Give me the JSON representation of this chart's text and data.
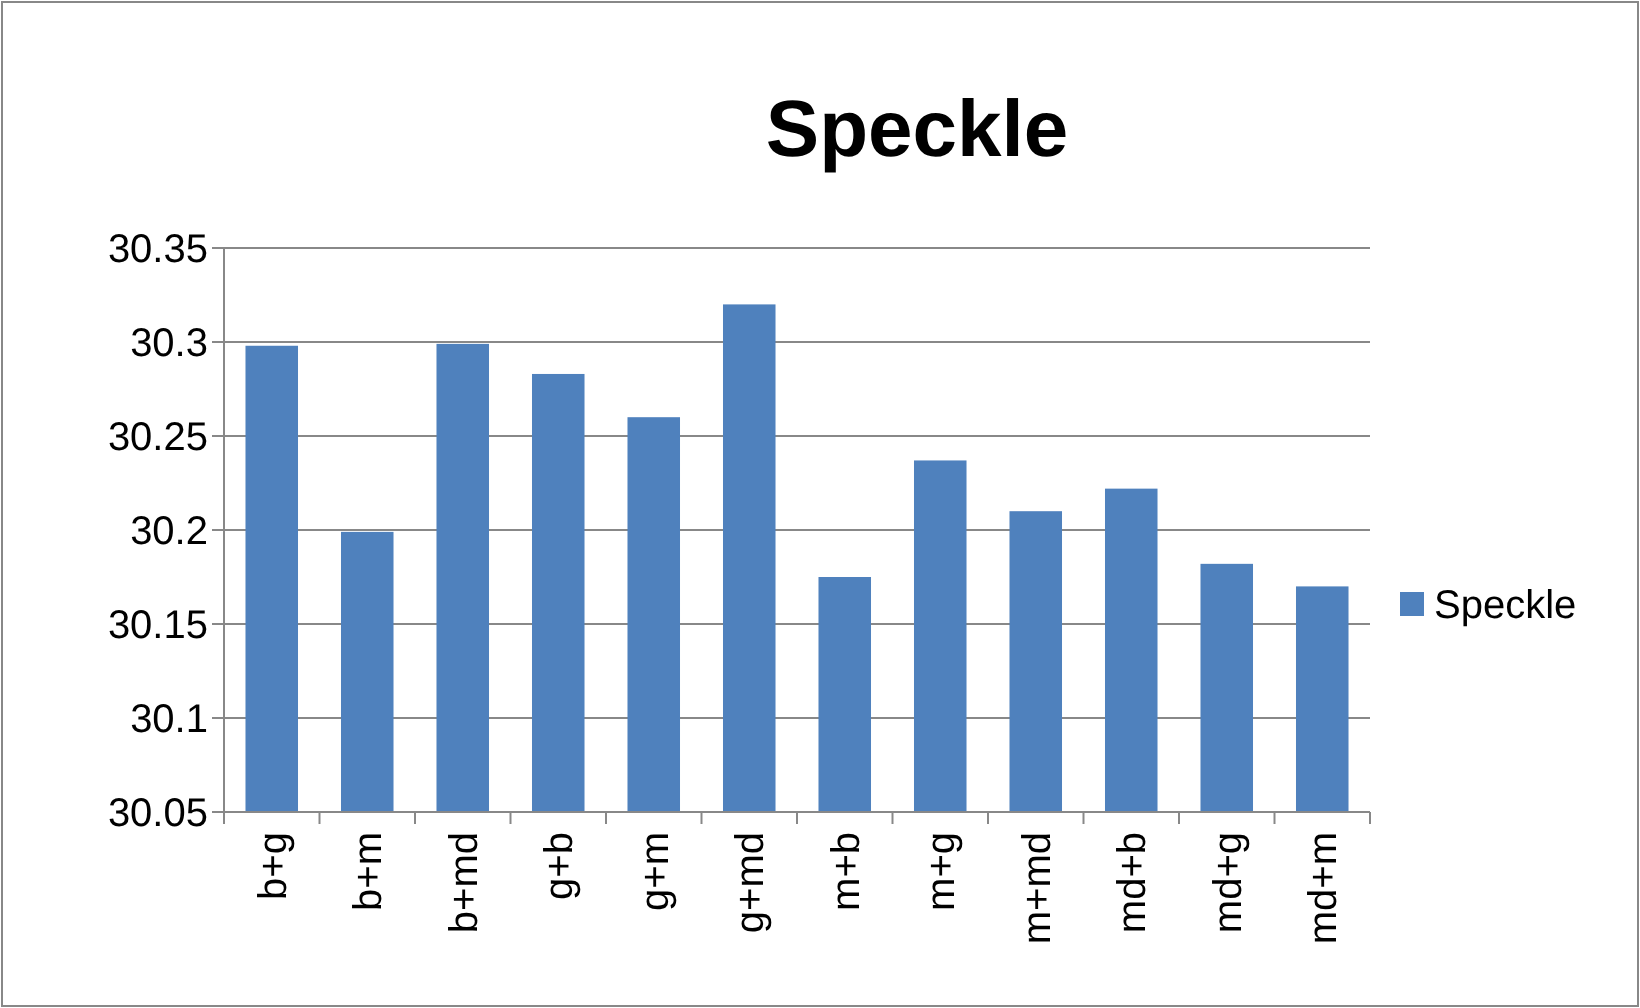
{
  "chart_data": {
    "type": "bar",
    "title": "Speckle",
    "categories": [
      "b+g",
      "b+m",
      "b+md",
      "g+b",
      "g+m",
      "g+md",
      "m+b",
      "m+g",
      "m+md",
      "md+b",
      "md+g",
      "md+m"
    ],
    "series": [
      {
        "name": "Speckle",
        "color": "#4f81bd",
        "values": [
          30.298,
          30.199,
          30.299,
          30.283,
          30.26,
          30.32,
          30.175,
          30.237,
          30.21,
          30.222,
          30.182,
          30.17
        ]
      }
    ],
    "ylim": [
      30.05,
      30.35
    ],
    "yticks": [
      30.05,
      30.1,
      30.15,
      30.2,
      30.25,
      30.3,
      30.35
    ],
    "grid": "y",
    "legend": "right"
  }
}
